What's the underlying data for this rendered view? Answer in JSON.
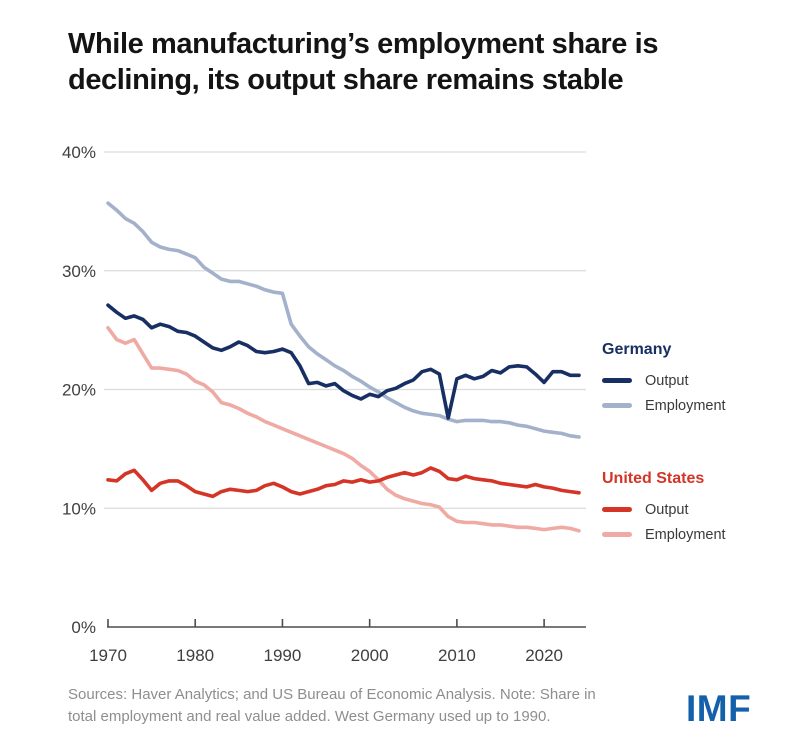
{
  "title": {
    "line1": "While manufacturing’s employment share is",
    "line2": "declining, its output share remains stable"
  },
  "legend": {
    "germany": {
      "header": "Germany",
      "output_label": "Output",
      "employment_label": "Employment"
    },
    "us": {
      "header": "United States",
      "output_label": "Output",
      "employment_label": "Employment"
    }
  },
  "source_note": {
    "line1": "Sources: Haver Analytics; and US Bureau of Economic Analysis. Note: Share in",
    "line2": "total employment and real value added. West Germany used up to 1990."
  },
  "logo_text": "IMF",
  "colors": {
    "germany_output": "#182f64",
    "germany_employment": "#a4b1cb",
    "us_output": "#d43527",
    "us_employment": "#efaaa4",
    "grid": "#dcdcdc",
    "axis": "#4d4d4d",
    "tick_text": "#3f3f3f",
    "logo_blue": "#1460aa",
    "title_text": "#141414",
    "source_text": "#8e8e8e"
  },
  "chart_data": {
    "type": "line",
    "title": "While manufacturing’s employment share is declining, its output share remains stable",
    "xlabel": "",
    "ylabel": "",
    "x_range": [
      1970,
      2024
    ],
    "x_step": 1,
    "ylim": [
      0,
      40
    ],
    "yticks": [
      0,
      10,
      20,
      30,
      40
    ],
    "ytick_labels": [
      "0%",
      "10%",
      "20%",
      "30%",
      "40%"
    ],
    "xticks": [
      1970,
      1980,
      1990,
      2000,
      2010,
      2020
    ],
    "xtick_labels": [
      "1970",
      "1980",
      "1990",
      "2000",
      "2010",
      "2020"
    ],
    "grid": "horizontal",
    "legend_position": "right",
    "series": [
      {
        "id": "germany-employment",
        "group": "Germany",
        "name": "Employment",
        "color": "#a4b1cb",
        "values": [
          35.7,
          35.1,
          34.4,
          34.0,
          33.3,
          32.4,
          32.0,
          31.8,
          31.7,
          31.4,
          31.1,
          30.3,
          29.8,
          29.3,
          29.1,
          29.1,
          28.9,
          28.7,
          28.4,
          28.2,
          28.1,
          25.5,
          24.5,
          23.6,
          23.0,
          22.5,
          22.0,
          21.6,
          21.1,
          20.7,
          20.2,
          19.8,
          19.3,
          18.9,
          18.5,
          18.2,
          18.0,
          17.9,
          17.8,
          17.5,
          17.3,
          17.4,
          17.4,
          17.4,
          17.3,
          17.3,
          17.2,
          17.0,
          16.9,
          16.7,
          16.5,
          16.4,
          16.3,
          16.1,
          16.0
        ]
      },
      {
        "id": "us-employment",
        "group": "United States",
        "name": "Employment",
        "color": "#efaaa4",
        "values": [
          25.2,
          24.2,
          23.9,
          24.2,
          23.0,
          21.8,
          21.8,
          21.7,
          21.6,
          21.3,
          20.7,
          20.4,
          19.8,
          18.9,
          18.7,
          18.4,
          18.0,
          17.7,
          17.3,
          17.0,
          16.7,
          16.4,
          16.1,
          15.8,
          15.5,
          15.2,
          14.9,
          14.6,
          14.2,
          13.6,
          13.1,
          12.4,
          11.6,
          11.1,
          10.8,
          10.6,
          10.4,
          10.3,
          10.1,
          9.3,
          8.9,
          8.8,
          8.8,
          8.7,
          8.6,
          8.6,
          8.5,
          8.4,
          8.4,
          8.3,
          8.2,
          8.3,
          8.4,
          8.3,
          8.1
        ]
      },
      {
        "id": "germany-output",
        "group": "Germany",
        "name": "Output",
        "color": "#182f64",
        "values": [
          27.1,
          26.5,
          26.0,
          26.2,
          25.9,
          25.2,
          25.5,
          25.3,
          24.9,
          24.8,
          24.5,
          24.0,
          23.5,
          23.3,
          23.6,
          24.0,
          23.7,
          23.2,
          23.1,
          23.2,
          23.4,
          23.1,
          22.0,
          20.5,
          20.6,
          20.3,
          20.5,
          19.9,
          19.5,
          19.2,
          19.6,
          19.4,
          19.9,
          20.1,
          20.5,
          20.8,
          21.5,
          21.7,
          21.3,
          17.6,
          20.9,
          21.2,
          20.9,
          21.1,
          21.6,
          21.4,
          21.9,
          22.0,
          21.9,
          21.3,
          20.6,
          21.5,
          21.5,
          21.2,
          21.2
        ]
      },
      {
        "id": "us-output",
        "group": "United States",
        "name": "Output",
        "color": "#d43527",
        "values": [
          12.4,
          12.3,
          12.9,
          13.2,
          12.4,
          11.5,
          12.1,
          12.3,
          12.3,
          11.9,
          11.4,
          11.2,
          11.0,
          11.4,
          11.6,
          11.5,
          11.4,
          11.5,
          11.9,
          12.1,
          11.8,
          11.4,
          11.2,
          11.4,
          11.6,
          11.9,
          12.0,
          12.3,
          12.2,
          12.4,
          12.2,
          12.3,
          12.6,
          12.8,
          13.0,
          12.8,
          13.0,
          13.4,
          13.1,
          12.5,
          12.4,
          12.7,
          12.5,
          12.4,
          12.3,
          12.1,
          12.0,
          11.9,
          11.8,
          12.0,
          11.8,
          11.7,
          11.5,
          11.4,
          11.3
        ]
      }
    ]
  }
}
